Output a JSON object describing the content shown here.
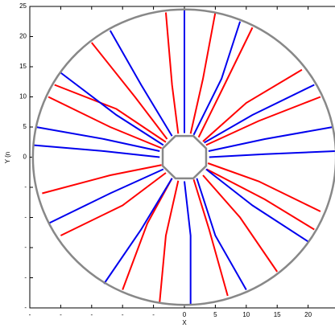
{
  "chart_data": {
    "type": "trajectory",
    "xlabel": "X",
    "ylabel": "Y (n",
    "xlim": [
      -25,
      25
    ],
    "ylim": [
      -25,
      25
    ],
    "xticks": [
      {
        "value": -25,
        "label": "-"
      },
      {
        "value": -20,
        "label": "-"
      },
      {
        "value": -15,
        "label": "-"
      },
      {
        "value": -10,
        "label": "-"
      },
      {
        "value": -5,
        "label": "-"
      },
      0,
      5,
      10,
      15,
      20,
      {
        "value": 25,
        "label": "2"
      }
    ],
    "yticks": [
      {
        "value": -25,
        "label": "-"
      },
      {
        "value": -20,
        "label": "-"
      },
      {
        "value": -15,
        "label": "-"
      },
      {
        "value": -10,
        "label": "-"
      },
      {
        "value": -5,
        "label": "-"
      },
      0,
      5,
      10,
      15,
      20,
      25
    ],
    "outer_radius": 24.5,
    "inner_radius": 3.8,
    "boundary_color": "#888888",
    "series": [
      {
        "color": "#ff0000",
        "trajectories": [
          {
            "x": [
              2.3,
              6,
              11
            ],
            "y": [
              3.3,
              11,
              21.5
            ]
          },
          {
            "x": [
              3,
              10,
              19
            ],
            "y": [
              2.6,
              9,
              14.5
            ]
          },
          {
            "x": [
              3.5,
              12,
              22
            ],
            "y": [
              2,
              6,
              10
            ]
          },
          {
            "x": [
              3.8,
              12,
              22
            ],
            "y": [
              -1,
              -4,
              -9
            ]
          },
          {
            "x": [
              3,
              9,
              15
            ],
            "y": [
              -3,
              -10,
              -19
            ]
          },
          {
            "x": [
              1.5,
              4,
              7
            ],
            "y": [
              -3.7,
              -12,
              -23
            ]
          },
          {
            "x": [
              -2,
              -6,
              -10
            ],
            "y": [
              -3.5,
              -11,
              -22
            ]
          },
          {
            "x": [
              -3,
              -10,
              -20
            ],
            "y": [
              -2.6,
              -8,
              -13
            ]
          },
          {
            "x": [
              -3.7,
              -12,
              -23
            ],
            "y": [
              -1.3,
              -3,
              -6
            ]
          },
          {
            "x": [
              -3.7,
              -12,
              -22
            ],
            "y": [
              1.5,
              5,
              10
            ]
          },
          {
            "x": [
              -2.8,
              -8,
              -15
            ],
            "y": [
              3,
              10,
              19
            ]
          },
          {
            "x": [
              -1,
              -2,
              -3
            ],
            "y": [
              3.9,
              12,
              24
            ]
          },
          {
            "x": [
              1,
              3,
              5
            ],
            "y": [
              3.9,
              13,
              24
            ]
          },
          {
            "x": [
              -3,
              -11,
              -21
            ],
            "y": [
              2.5,
              8,
              12
            ]
          },
          {
            "x": [
              3.6,
              13,
              21
            ],
            "y": [
              -2,
              -7,
              -12
            ]
          },
          {
            "x": [
              -1,
              -3,
              -4
            ],
            "y": [
              -3.9,
              -13,
              -24
            ]
          }
        ]
      },
      {
        "color": "#0000ee",
        "trajectories": [
          {
            "x": [
              0,
              0,
              0
            ],
            "y": [
              4,
              13,
              24.5
            ]
          },
          {
            "x": [
              1.5,
              6,
              9
            ],
            "y": [
              3.7,
              13,
              22.5
            ]
          },
          {
            "x": [
              3.2,
              11,
              21
            ],
            "y": [
              2.4,
              7,
              12
            ]
          },
          {
            "x": [
              4,
              13,
              24.5
            ],
            "y": [
              0,
              0.5,
              1
            ]
          },
          {
            "x": [
              3.5,
              11,
              20
            ],
            "y": [
              -2,
              -8,
              -14
            ]
          },
          {
            "x": [
              2,
              5,
              10
            ],
            "y": [
              -3.5,
              -13,
              -22
            ]
          },
          {
            "x": [
              0,
              1,
              1
            ],
            "y": [
              -4,
              -13,
              -24.5
            ]
          },
          {
            "x": [
              -2,
              -7,
              -13
            ],
            "y": [
              -3.5,
              -12,
              -21
            ]
          },
          {
            "x": [
              -3.4,
              -12,
              -22
            ],
            "y": [
              -2,
              -6,
              -11
            ]
          },
          {
            "x": [
              -4,
              -13,
              -24.5
            ],
            "y": [
              0,
              1,
              2
            ]
          },
          {
            "x": [
              -3.4,
              -11,
              -20
            ],
            "y": [
              2,
              7,
              14
            ]
          },
          {
            "x": [
              -2,
              -7,
              -12
            ],
            "y": [
              3.5,
              12,
              21
            ]
          },
          {
            "x": [
              -4,
              -13,
              -24
            ],
            "y": [
              1,
              3,
              5
            ]
          },
          {
            "x": [
              3.9,
              13,
              24
            ],
            "y": [
              1,
              3,
              5
            ]
          }
        ]
      }
    ]
  }
}
